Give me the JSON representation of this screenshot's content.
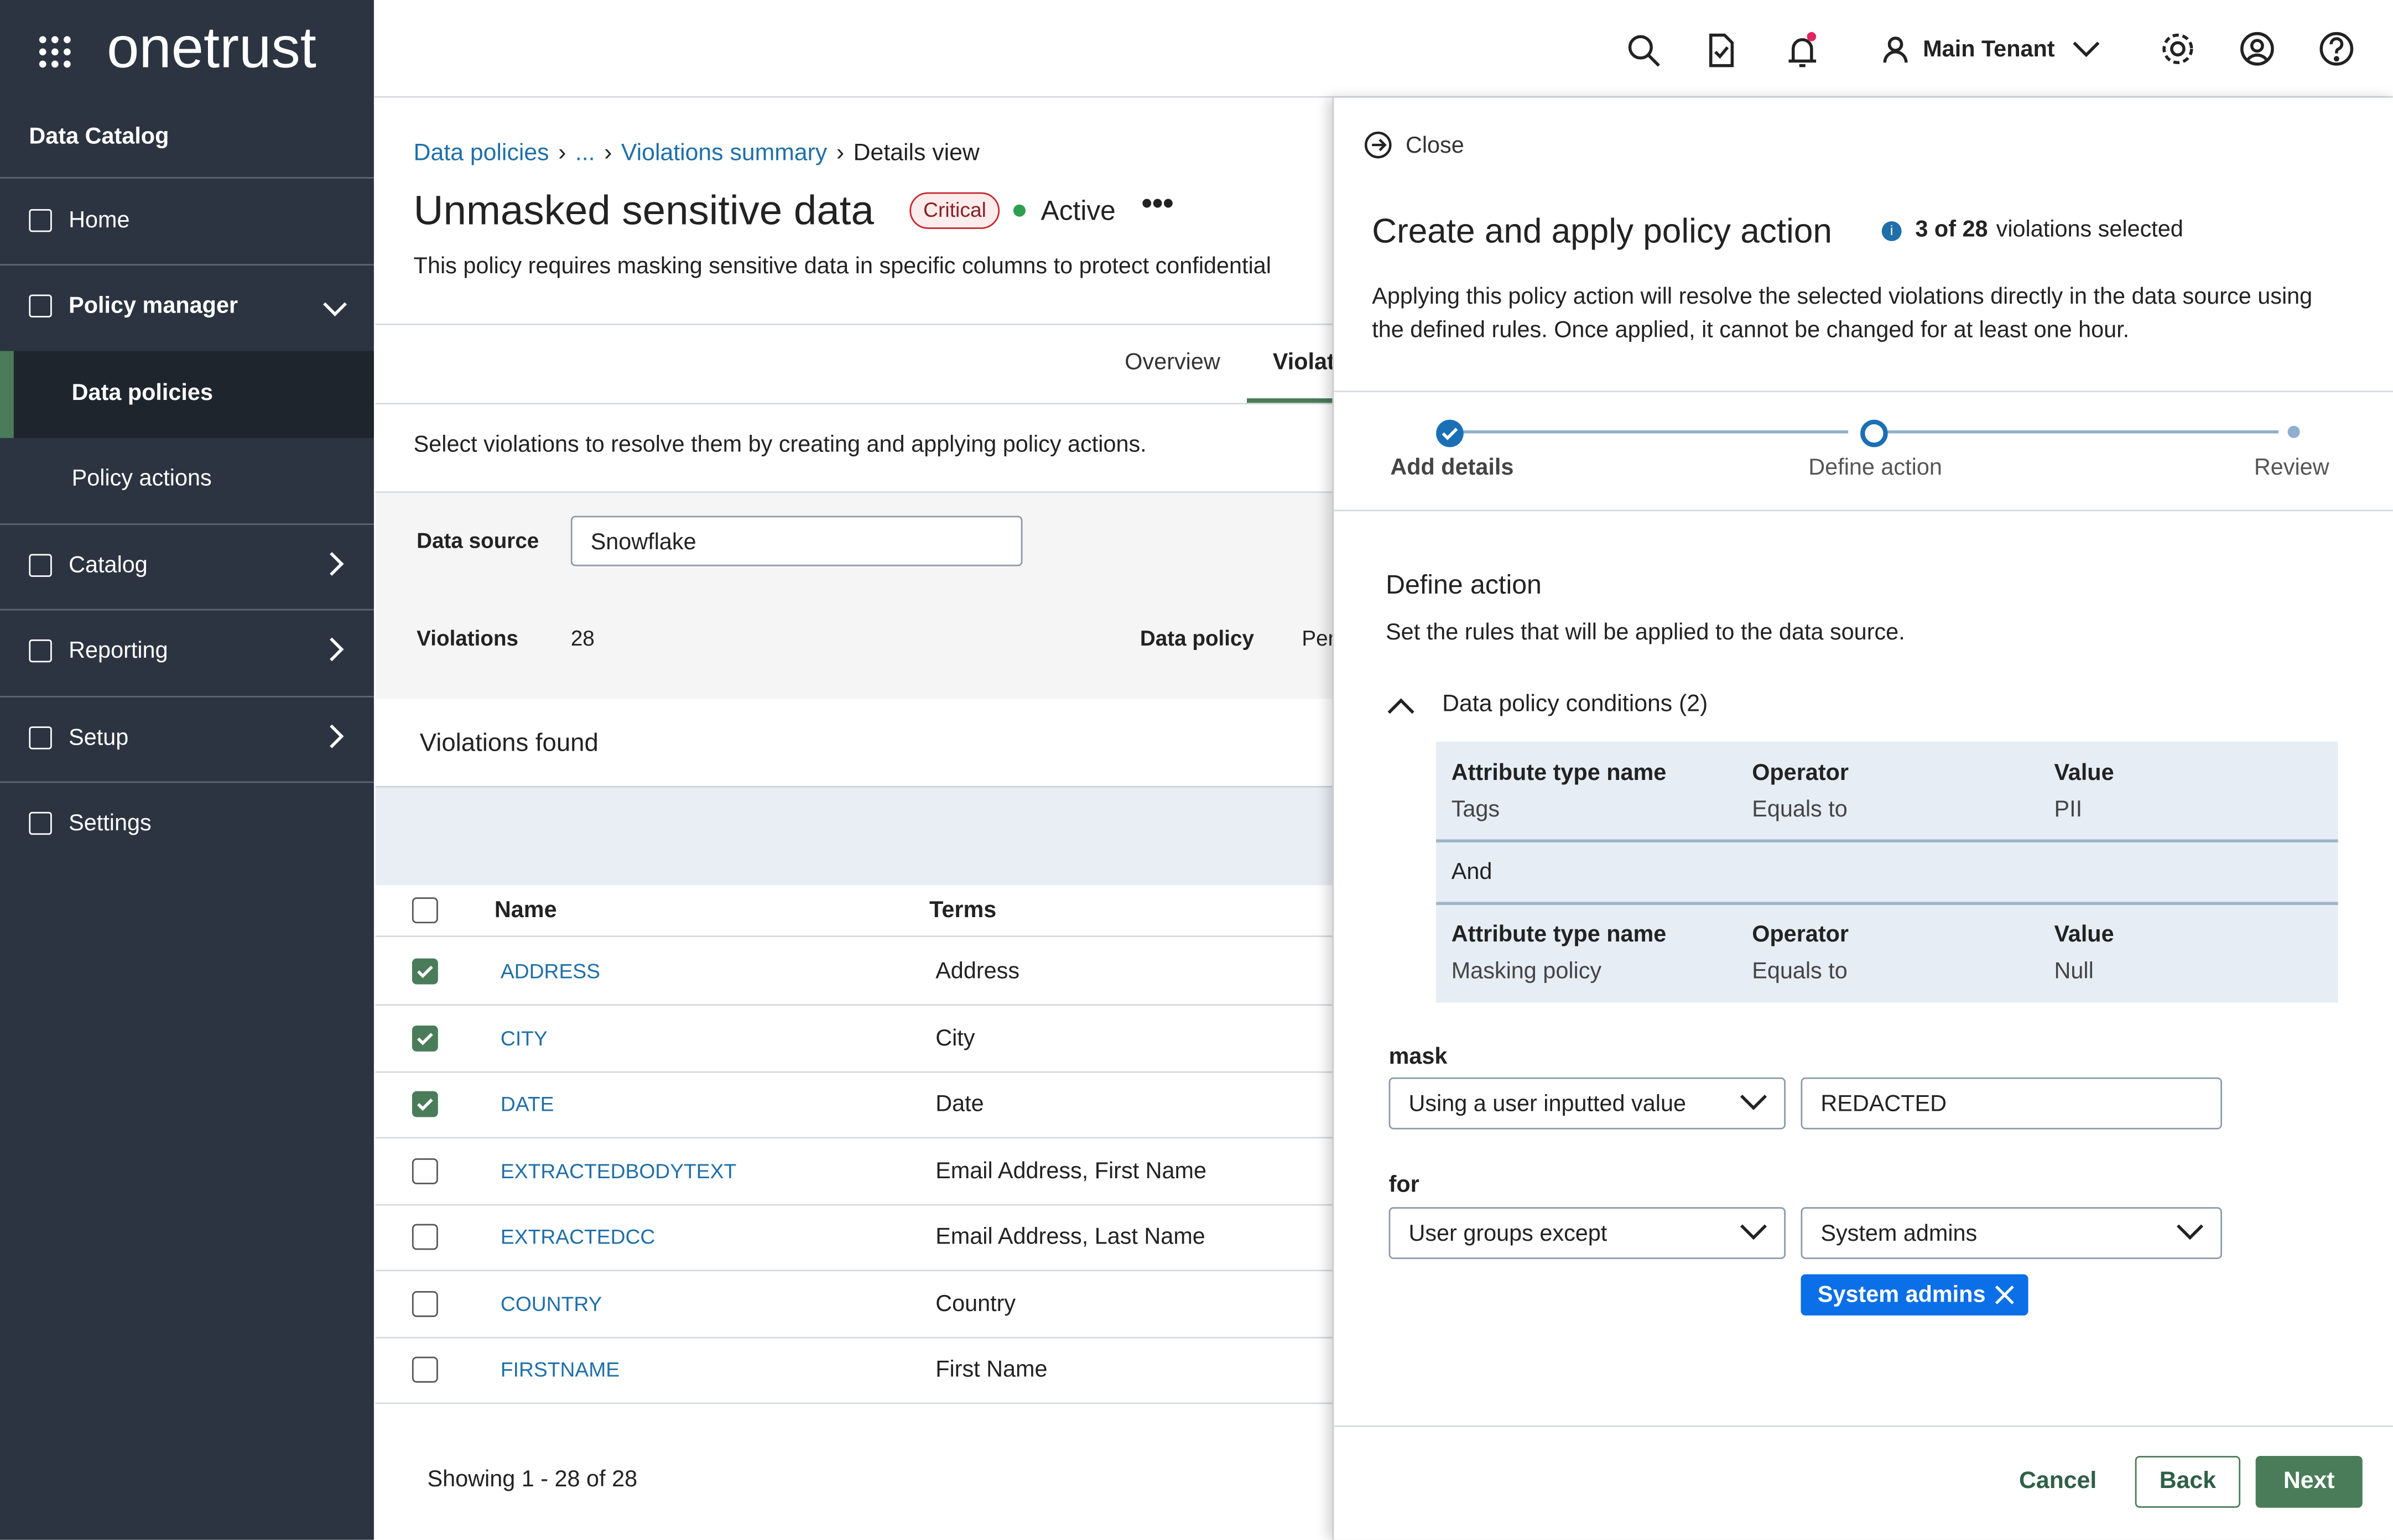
{
  "header": {
    "logo": "onetrust",
    "app_title": "Data Catalog",
    "tenant": "Main Tenant"
  },
  "nav": {
    "items": [
      "Home",
      "Policy manager",
      "Data policies",
      "Policy actions",
      "Catalog",
      "Reporting",
      "Setup",
      "Settings"
    ],
    "selected": "Data policies"
  },
  "breadcrumb": [
    "Data policies",
    "...",
    "Violations summary",
    "Details view"
  ],
  "page": {
    "title": "Unmasked sensitive data",
    "severity": "Critical",
    "status": "Active",
    "description": "This policy requires masking sensitive data in specific columns to protect confidential",
    "tabs": [
      "Overview",
      "Violat"
    ],
    "instruction": "Select violations to resolve them by creating and applying policy actions."
  },
  "filters": {
    "data_source_label": "Data source",
    "data_source": "Snowflake",
    "violations_label": "Violations",
    "violations": "28",
    "data_policy_label": "Data policy",
    "data_policy": "Per"
  },
  "table": {
    "title": "Violations found",
    "columns": [
      "Name",
      "Terms"
    ],
    "rows": [
      {
        "name": "ADDRESS",
        "terms": "Address",
        "selected": true
      },
      {
        "name": "CITY",
        "terms": "City",
        "selected": true
      },
      {
        "name": "DATE",
        "terms": "Date",
        "selected": true
      },
      {
        "name": "EXTRACTEDBODYTEXT",
        "terms": "Email Address, First Name",
        "selected": false
      },
      {
        "name": "EXTRACTEDCC",
        "terms": "Email Address, Last Name",
        "selected": false
      },
      {
        "name": "COUNTRY",
        "terms": "Country",
        "selected": false
      },
      {
        "name": "FIRSTNAME",
        "terms": "First Name",
        "selected": false
      }
    ],
    "footer": "Showing 1 - 28 of 28"
  },
  "panel": {
    "close": "Close",
    "title": "Create and apply policy action",
    "selection_count": "3 of 28",
    "selection_text": "violations selected",
    "description": "Applying this policy action will resolve the selected violations directly in the data source using the defined rules. Once applied, it cannot be changed for at least one hour.",
    "steps": [
      "Add details",
      "Define action",
      "Review"
    ],
    "section_title": "Define action",
    "section_subtitle": "Set the rules that will be applied to the data source.",
    "conditions_title": "Data policy conditions (2)",
    "conditions_headers": [
      "Attribute type name",
      "Operator",
      "Value"
    ],
    "conditions": [
      [
        "Tags",
        "Equals to",
        "PII"
      ],
      [
        "Masking policy",
        "Equals to",
        "Null"
      ]
    ],
    "conjunction": "And",
    "mask_label": "mask",
    "mask_method": "Using a user inputted value",
    "mask_value": "REDACTED",
    "for_label": "for",
    "for_method": "User groups except",
    "for_group": "System admins",
    "chip": "System admins",
    "buttons": [
      "Cancel",
      "Back",
      "Next"
    ]
  }
}
